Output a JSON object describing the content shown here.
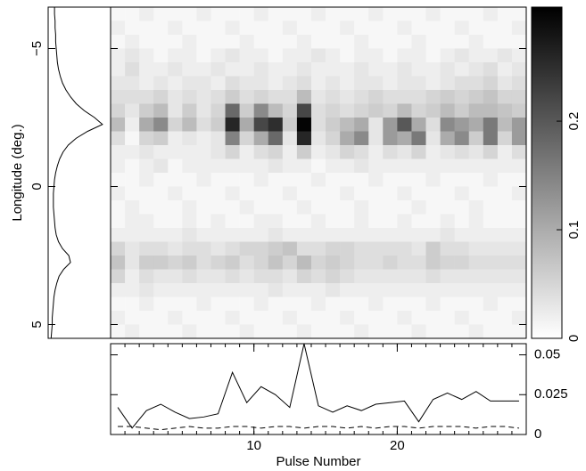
{
  "chart_data": [
    {
      "type": "heatmap",
      "ylabel": "Longitude (deg.)",
      "x_bins": [
        0,
        1,
        2,
        3,
        4,
        5,
        6,
        7,
        8,
        9,
        10,
        11,
        12,
        13,
        14,
        15,
        16,
        17,
        18,
        19,
        20,
        21,
        22,
        23,
        24,
        25,
        26,
        27,
        28,
        29
      ],
      "y_bins": [
        -6.5,
        -6,
        -5.5,
        -5,
        -4.5,
        -4,
        -3.5,
        -3,
        -2.5,
        -2,
        -1.5,
        -1,
        -0.5,
        0,
        0.5,
        1,
        1.5,
        2,
        2.5,
        3,
        3.5,
        4,
        4.5,
        5,
        5.5
      ],
      "xlim": [
        0,
        29
      ],
      "ylim": [
        -6.5,
        5.5
      ],
      "yticks": [
        {
          "value": -5,
          "label": "−5"
        },
        0,
        5
      ],
      "zlim": [
        0,
        0.305
      ],
      "zticks": [
        0,
        0.1,
        0.2
      ],
      "z": [
        [
          0.01,
          0.01,
          0.02,
          0.01,
          0.01,
          0.01,
          0.02,
          0.01,
          0.01,
          0.01,
          0.02,
          0.01,
          0.01,
          0.01,
          0.02,
          0.01,
          0.01,
          0.01,
          0.02,
          0.01,
          0.01,
          0.01,
          0.02,
          0.01,
          0.01,
          0.01,
          0.02,
          0.01,
          0.01
        ],
        [
          0.02,
          0.01,
          0.01,
          0.01,
          0.02,
          0.01,
          0.01,
          0.01,
          0.02,
          0.01,
          0.01,
          0.01,
          0.02,
          0.01,
          0.01,
          0.01,
          0.02,
          0.01,
          0.01,
          0.01,
          0.02,
          0.01,
          0.01,
          0.01,
          0.02,
          0.01,
          0.01,
          0.01,
          0.02
        ],
        [
          0.01,
          0.02,
          0.01,
          0.01,
          0.01,
          0.02,
          0.01,
          0.01,
          0.01,
          0.02,
          0.01,
          0.01,
          0.01,
          0.02,
          0.01,
          0.01,
          0.01,
          0.02,
          0.01,
          0.01,
          0.01,
          0.02,
          0.01,
          0.01,
          0.01,
          0.02,
          0.01,
          0.01,
          0.01
        ],
        [
          0.02,
          0.03,
          0.02,
          0.01,
          0.02,
          0.02,
          0.01,
          0.02,
          0.03,
          0.02,
          0.02,
          0.01,
          0.02,
          0.02,
          0.03,
          0.02,
          0.01,
          0.02,
          0.02,
          0.01,
          0.02,
          0.02,
          0.01,
          0.02,
          0.03,
          0.02,
          0.02,
          0.03,
          0.02
        ],
        [
          0.02,
          0.04,
          0.02,
          0.02,
          0.03,
          0.02,
          0.02,
          0.03,
          0.02,
          0.02,
          0.03,
          0.02,
          0.02,
          0.03,
          0.02,
          0.02,
          0.02,
          0.03,
          0.02,
          0.02,
          0.03,
          0.02,
          0.02,
          0.03,
          0.02,
          0.03,
          0.04,
          0.02,
          0.03
        ],
        [
          0.03,
          0.03,
          0.02,
          0.03,
          0.02,
          0.03,
          0.03,
          0.02,
          0.04,
          0.03,
          0.03,
          0.02,
          0.03,
          0.04,
          0.02,
          0.03,
          0.02,
          0.03,
          0.03,
          0.02,
          0.03,
          0.03,
          0.02,
          0.03,
          0.04,
          0.04,
          0.05,
          0.03,
          0.04
        ],
        [
          0.04,
          0.04,
          0.04,
          0.05,
          0.03,
          0.04,
          0.03,
          0.04,
          0.06,
          0.04,
          0.05,
          0.04,
          0.04,
          0.08,
          0.03,
          0.04,
          0.03,
          0.04,
          0.05,
          0.04,
          0.04,
          0.04,
          0.05,
          0.06,
          0.05,
          0.06,
          0.07,
          0.05,
          0.05
        ],
        [
          0.05,
          0.03,
          0.06,
          0.08,
          0.03,
          0.06,
          0.03,
          0.05,
          0.18,
          0.06,
          0.14,
          0.08,
          0.05,
          0.22,
          0.04,
          0.05,
          0.04,
          0.05,
          0.06,
          0.05,
          0.08,
          0.05,
          0.06,
          0.08,
          0.06,
          0.08,
          0.08,
          0.07,
          0.06
        ],
        [
          0.08,
          0.02,
          0.1,
          0.14,
          0.05,
          0.08,
          0.04,
          0.06,
          0.26,
          0.1,
          0.22,
          0.25,
          0.06,
          0.3,
          0.04,
          0.06,
          0.08,
          0.1,
          0.03,
          0.12,
          0.2,
          0.1,
          0.04,
          0.14,
          0.12,
          0.1,
          0.16,
          0.08,
          0.12
        ],
        [
          0.04,
          0.01,
          0.05,
          0.06,
          0.02,
          0.03,
          0.02,
          0.03,
          0.15,
          0.05,
          0.1,
          0.18,
          0.03,
          0.26,
          0.03,
          0.05,
          0.1,
          0.14,
          0.03,
          0.12,
          0.1,
          0.16,
          0.03,
          0.1,
          0.14,
          0.06,
          0.16,
          0.05,
          0.12
        ],
        [
          0.02,
          0.02,
          0.03,
          0.02,
          0.02,
          0.02,
          0.02,
          0.03,
          0.05,
          0.02,
          0.04,
          0.05,
          0.02,
          0.06,
          0.02,
          0.03,
          0.05,
          0.04,
          0.02,
          0.04,
          0.03,
          0.05,
          0.02,
          0.03,
          0.04,
          0.03,
          0.05,
          0.02,
          0.04
        ],
        [
          0.02,
          0.01,
          0.02,
          0.03,
          0.01,
          0.02,
          0.02,
          0.02,
          0.02,
          0.02,
          0.02,
          0.03,
          0.02,
          0.02,
          0.01,
          0.02,
          0.02,
          0.03,
          0.02,
          0.02,
          0.02,
          0.02,
          0.02,
          0.02,
          0.02,
          0.02,
          0.02,
          0.02,
          0.02
        ],
        [
          0.01,
          0.01,
          0.02,
          0.01,
          0.01,
          0.01,
          0.02,
          0.01,
          0.01,
          0.01,
          0.02,
          0.01,
          0.01,
          0.01,
          0.02,
          0.01,
          0.01,
          0.01,
          0.02,
          0.01,
          0.01,
          0.01,
          0.02,
          0.01,
          0.01,
          0.01,
          0.02,
          0.01,
          0.01
        ],
        [
          0.02,
          0.01,
          0.01,
          0.01,
          0.02,
          0.01,
          0.01,
          0.01,
          0.02,
          0.01,
          0.01,
          0.01,
          0.02,
          0.01,
          0.01,
          0.01,
          0.02,
          0.01,
          0.01,
          0.01,
          0.02,
          0.01,
          0.01,
          0.01,
          0.02,
          0.01,
          0.01,
          0.01,
          0.02
        ],
        [
          0.01,
          0.02,
          0.01,
          0.01,
          0.01,
          0.02,
          0.01,
          0.01,
          0.01,
          0.02,
          0.01,
          0.01,
          0.01,
          0.02,
          0.01,
          0.01,
          0.01,
          0.02,
          0.01,
          0.01,
          0.01,
          0.02,
          0.01,
          0.01,
          0.01,
          0.02,
          0.01,
          0.01,
          0.01
        ],
        [
          0.01,
          0.02,
          0.02,
          0.01,
          0.01,
          0.02,
          0.01,
          0.02,
          0.01,
          0.01,
          0.02,
          0.02,
          0.01,
          0.01,
          0.02,
          0.01,
          0.01,
          0.02,
          0.01,
          0.01,
          0.02,
          0.01,
          0.01,
          0.02,
          0.01,
          0.02,
          0.01,
          0.01,
          0.01
        ],
        [
          0.02,
          0.02,
          0.02,
          0.02,
          0.02,
          0.03,
          0.02,
          0.02,
          0.02,
          0.02,
          0.02,
          0.03,
          0.02,
          0.02,
          0.02,
          0.02,
          0.02,
          0.02,
          0.02,
          0.02,
          0.02,
          0.02,
          0.02,
          0.03,
          0.02,
          0.02,
          0.02,
          0.02,
          0.02
        ],
        [
          0.05,
          0.03,
          0.04,
          0.04,
          0.03,
          0.04,
          0.04,
          0.03,
          0.04,
          0.05,
          0.05,
          0.06,
          0.07,
          0.04,
          0.04,
          0.05,
          0.05,
          0.04,
          0.04,
          0.04,
          0.04,
          0.03,
          0.06,
          0.04,
          0.04,
          0.03,
          0.03,
          0.03,
          0.03
        ],
        [
          0.07,
          0.03,
          0.06,
          0.06,
          0.05,
          0.06,
          0.04,
          0.05,
          0.06,
          0.04,
          0.05,
          0.07,
          0.05,
          0.08,
          0.05,
          0.06,
          0.05,
          0.04,
          0.04,
          0.05,
          0.04,
          0.04,
          0.06,
          0.05,
          0.05,
          0.04,
          0.04,
          0.04,
          0.04
        ],
        [
          0.05,
          0.02,
          0.04,
          0.03,
          0.03,
          0.04,
          0.03,
          0.03,
          0.04,
          0.03,
          0.04,
          0.04,
          0.03,
          0.05,
          0.04,
          0.05,
          0.04,
          0.03,
          0.03,
          0.03,
          0.03,
          0.03,
          0.04,
          0.03,
          0.03,
          0.03,
          0.03,
          0.03,
          0.03
        ],
        [
          0.02,
          0.02,
          0.03,
          0.02,
          0.02,
          0.02,
          0.02,
          0.02,
          0.02,
          0.02,
          0.02,
          0.03,
          0.02,
          0.02,
          0.02,
          0.03,
          0.02,
          0.02,
          0.02,
          0.02,
          0.02,
          0.02,
          0.02,
          0.02,
          0.02,
          0.02,
          0.02,
          0.02,
          0.02
        ],
        [
          0.01,
          0.01,
          0.02,
          0.01,
          0.01,
          0.01,
          0.02,
          0.01,
          0.01,
          0.01,
          0.02,
          0.01,
          0.01,
          0.01,
          0.02,
          0.01,
          0.01,
          0.01,
          0.02,
          0.01,
          0.01,
          0.01,
          0.02,
          0.01,
          0.01,
          0.01,
          0.02,
          0.01,
          0.01
        ],
        [
          0.02,
          0.01,
          0.01,
          0.01,
          0.02,
          0.01,
          0.01,
          0.01,
          0.02,
          0.01,
          0.01,
          0.01,
          0.02,
          0.01,
          0.01,
          0.01,
          0.02,
          0.01,
          0.01,
          0.01,
          0.02,
          0.01,
          0.01,
          0.01,
          0.02,
          0.01,
          0.01,
          0.01,
          0.02
        ],
        [
          0.01,
          0.02,
          0.01,
          0.01,
          0.01,
          0.02,
          0.01,
          0.01,
          0.01,
          0.02,
          0.01,
          0.01,
          0.01,
          0.02,
          0.01,
          0.01,
          0.01,
          0.02,
          0.01,
          0.01,
          0.01,
          0.02,
          0.01,
          0.01,
          0.01,
          0.02,
          0.01,
          0.01,
          0.01
        ]
      ]
    },
    {
      "type": "profile",
      "color": "#000000",
      "xlim": [
        0,
        1
      ],
      "y": [
        -6.5,
        -6.25,
        -6,
        -5.75,
        -5.5,
        -5.25,
        -5,
        -4.75,
        -4.5,
        -4.25,
        -4,
        -3.75,
        -3.5,
        -3.25,
        -3,
        -2.75,
        -2.5,
        -2.25,
        -2,
        -1.75,
        -1.5,
        -1.25,
        -1,
        -0.75,
        -0.5,
        -0.25,
        0,
        0.25,
        0.5,
        0.75,
        1,
        1.25,
        1.5,
        1.75,
        2,
        2.25,
        2.5,
        2.75,
        3,
        3.25,
        3.5,
        3.75,
        4,
        4.25,
        4.5,
        4.75,
        5,
        5.25,
        5.5
      ],
      "values": [
        0.08,
        0.08,
        0.09,
        0.09,
        0.1,
        0.1,
        0.11,
        0.12,
        0.13,
        0.15,
        0.18,
        0.22,
        0.28,
        0.36,
        0.46,
        0.6,
        0.78,
        0.92,
        0.66,
        0.46,
        0.32,
        0.23,
        0.17,
        0.13,
        0.1,
        0.08,
        0.07,
        0.06,
        0.06,
        0.06,
        0.07,
        0.08,
        0.09,
        0.11,
        0.15,
        0.22,
        0.33,
        0.36,
        0.24,
        0.16,
        0.12,
        0.09,
        0.07,
        0.06,
        0.05,
        0.04,
        0.04,
        0.03,
        0.02
      ]
    },
    {
      "type": "line",
      "xlabel": "Pulse Number",
      "x": [
        0.5,
        1.5,
        2.5,
        3.5,
        4.5,
        5.5,
        6.5,
        7.5,
        8.5,
        9.5,
        10.5,
        11.5,
        12.5,
        13.5,
        14.5,
        15.5,
        16.5,
        17.5,
        18.5,
        19.5,
        20.5,
        21.5,
        22.5,
        23.5,
        24.5,
        25.5,
        26.5,
        27.5,
        28.5
      ],
      "xlim": [
        0,
        29
      ],
      "xticks": [
        10,
        20
      ],
      "ylim": [
        0,
        0.057
      ],
      "yticks": [
        0,
        0.025,
        0.05
      ],
      "series": [
        {
          "color": "#000000",
          "dash": "solid",
          "values": [
            0.017,
            0.004,
            0.015,
            0.019,
            0.014,
            0.01,
            0.011,
            0.013,
            0.039,
            0.02,
            0.03,
            0.025,
            0.017,
            0.057,
            0.018,
            0.014,
            0.018,
            0.015,
            0.019,
            0.02,
            0.021,
            0.008,
            0.022,
            0.026,
            0.022,
            0.027,
            0.021,
            0.021,
            0.021
          ]
        },
        {
          "color": "#000000",
          "dash": "dashed",
          "values": [
            0.005,
            0.005,
            0.004,
            0.003,
            0.004,
            0.005,
            0.004,
            0.004,
            0.005,
            0.005,
            0.004,
            0.005,
            0.005,
            0.004,
            0.005,
            0.005,
            0.004,
            0.005,
            0.004,
            0.005,
            0.005,
            0.004,
            0.005,
            0.005,
            0.005,
            0.004,
            0.005,
            0.005,
            0.004
          ]
        }
      ]
    }
  ]
}
